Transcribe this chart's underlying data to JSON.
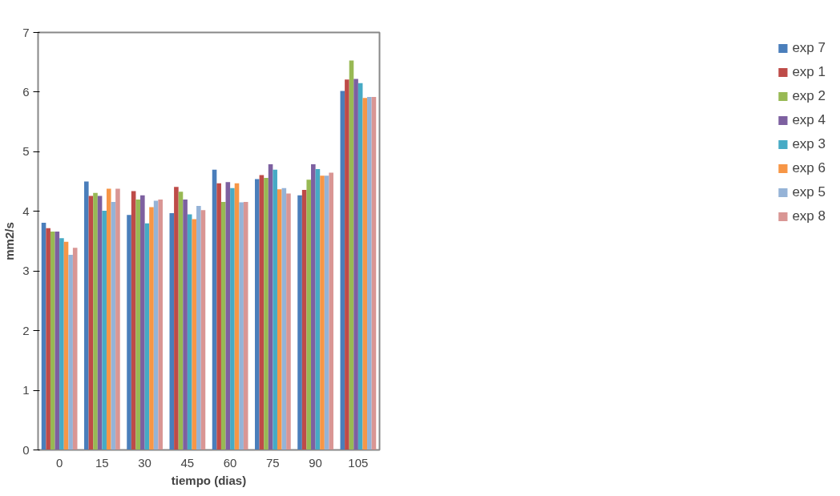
{
  "chart_data": {
    "type": "bar",
    "xlabel": "tiempo (dias)",
    "ylabel": "mm2/s",
    "categories": [
      "0",
      "15",
      "30",
      "45",
      "60",
      "75",
      "90",
      "105"
    ],
    "ylim": [
      0,
      7
    ],
    "yticks": [
      0,
      1,
      2,
      3,
      4,
      5,
      6,
      7
    ],
    "grid": false,
    "legend": "right",
    "series": [
      {
        "name": "exp 7",
        "color": "#4a7ebb",
        "values": [
          3.81,
          4.5,
          3.94,
          3.97,
          4.7,
          4.54,
          4.27,
          6.02
        ]
      },
      {
        "name": "exp 1",
        "color": "#be4b48",
        "values": [
          3.72,
          4.26,
          4.34,
          4.41,
          4.47,
          4.61,
          4.36,
          6.21
        ]
      },
      {
        "name": "exp 2",
        "color": "#98b954",
        "values": [
          3.66,
          4.31,
          4.2,
          4.33,
          4.16,
          4.56,
          4.53,
          6.53
        ]
      },
      {
        "name": "exp 4",
        "color": "#7d60a0",
        "values": [
          3.66,
          4.26,
          4.27,
          4.2,
          4.49,
          4.79,
          4.79,
          6.22
        ]
      },
      {
        "name": "exp 3",
        "color": "#46aac5",
        "values": [
          3.55,
          4.01,
          3.8,
          3.95,
          4.39,
          4.7,
          4.71,
          6.15
        ]
      },
      {
        "name": "exp 6",
        "color": "#f79646",
        "values": [
          3.49,
          4.38,
          4.07,
          3.87,
          4.47,
          4.37,
          4.6,
          5.9
        ]
      },
      {
        "name": "exp 5",
        "color": "#95b3d7",
        "values": [
          3.27,
          4.16,
          4.18,
          4.09,
          4.15,
          4.39,
          4.6,
          5.92
        ]
      },
      {
        "name": "exp 8",
        "color": "#d99694",
        "values": [
          3.39,
          4.38,
          4.2,
          4.02,
          4.16,
          4.3,
          4.65,
          5.92
        ]
      }
    ]
  }
}
